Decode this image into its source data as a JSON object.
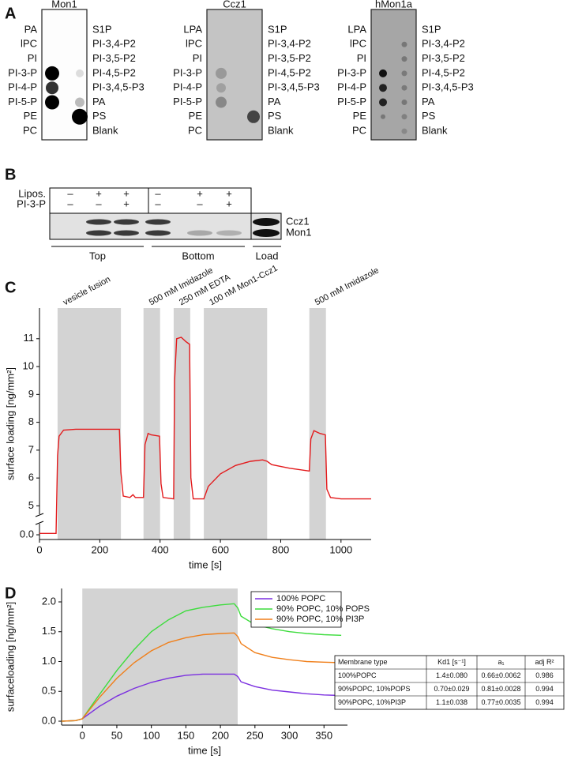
{
  "panel_a": {
    "label": "A",
    "blots": [
      {
        "title": "Mon1",
        "left": [
          "PA",
          "lPC",
          "PI",
          "PI-3-P",
          "PI-4-P",
          "PI-5-P",
          "PE",
          "PC"
        ],
        "right": [
          "S1P",
          "PI-3,4-P2",
          "PI-3,5-P2",
          "PI-4,5-P2",
          "PI-3,4,5-P3",
          "PA",
          "PS",
          "Blank"
        ]
      },
      {
        "title": "Ccz1",
        "left": [
          "LPA",
          "lPC",
          "PI",
          "PI-3-P",
          "PI-4-P",
          "PI-5-P",
          "PE",
          "PC"
        ],
        "right": [
          "S1P",
          "PI-3,4-P2",
          "PI-3,5-P2",
          "PI-4,5-P2",
          "PI-3,4,5-P3",
          "PA",
          "PS",
          "Blank"
        ]
      },
      {
        "title": "hMon1a",
        "left": [
          "LPA",
          "lPC",
          "PI",
          "PI-3-P",
          "PI-4-P",
          "PI-5-P",
          "PE",
          "PC"
        ],
        "right": [
          "S1P",
          "PI-3,4-P2",
          "PI-3,5-P2",
          "PI-4,5-P2",
          "PI-3,4,5-P3",
          "PA",
          "PS",
          "Blank"
        ]
      }
    ]
  },
  "panel_b": {
    "label": "B",
    "row_labels": [
      "Lipos.",
      "PI-3-P"
    ],
    "lanes": [
      [
        "–",
        "–"
      ],
      [
        "+",
        "–"
      ],
      [
        "+",
        "+"
      ],
      [
        "–",
        "–"
      ],
      [
        "+",
        "–"
      ],
      [
        "+",
        "+"
      ]
    ],
    "bands": [
      "Ccz1",
      "Mon1"
    ],
    "fractions": [
      "Top",
      "Bottom",
      "Load"
    ]
  },
  "panel_c": {
    "label": "C"
  },
  "panel_d": {
    "label": "D"
  },
  "chart_data": [
    {
      "type": "line",
      "x_label": "time [s]",
      "y_label": "surface loading [ng/mm²]",
      "xlim": [
        0,
        1100
      ],
      "xticks": [
        0,
        200,
        400,
        600,
        800,
        1000
      ],
      "ylim": [
        -0.17,
        12.1
      ],
      "ybreak": [
        0.4,
        4.7
      ],
      "yticks": [
        {
          "value": 0,
          "label": "0.0"
        },
        5,
        6,
        7,
        8,
        9,
        10,
        11
      ],
      "shaded": [
        {
          "x0": 60,
          "x1": 270,
          "label": "vesicle fusion"
        },
        {
          "x0": 345,
          "x1": 400,
          "label": "500 mM Imidazole"
        },
        {
          "x0": 445,
          "x1": 500,
          "label": "250 mM EDTA"
        },
        {
          "x0": 545,
          "x1": 755,
          "label": "100 nM Mon1-Ccz1"
        },
        {
          "x0": 895,
          "x1": 950,
          "label": "500 mM Imidazole"
        }
      ],
      "x": [
        0,
        55,
        60,
        65,
        80,
        120,
        265,
        270,
        278,
        300,
        310,
        318,
        345,
        350,
        360,
        370,
        398,
        403,
        410,
        445,
        448,
        455,
        470,
        485,
        498,
        502,
        510,
        545,
        560,
        600,
        650,
        700,
        740,
        755,
        770,
        830,
        895,
        900,
        910,
        930,
        948,
        953,
        965,
        1000,
        1100
      ],
      "series": [
        {
          "color": "#e31a1c",
          "values": [
            0.05,
            0.05,
            6.8,
            7.5,
            7.72,
            7.75,
            7.75,
            6.2,
            5.35,
            5.3,
            5.4,
            5.3,
            5.3,
            7.2,
            7.6,
            7.55,
            7.5,
            5.8,
            5.3,
            5.25,
            9.5,
            11.0,
            11.05,
            10.9,
            10.8,
            6.0,
            5.25,
            5.25,
            5.7,
            6.15,
            6.45,
            6.6,
            6.65,
            6.6,
            6.48,
            6.35,
            6.25,
            7.4,
            7.7,
            7.6,
            7.55,
            5.6,
            5.3,
            5.25,
            5.25
          ]
        }
      ]
    },
    {
      "type": "line",
      "x_label": "time [s]",
      "y_label": "surfaceloading  [ng/mm²]",
      "xlim": [
        -30,
        384
      ],
      "xticks": [
        0,
        50,
        100,
        150,
        200,
        250,
        300,
        350
      ],
      "ylim": [
        -0.066,
        2.225
      ],
      "yticks": [
        {
          "value": 0,
          "label": "0.0"
        },
        0.5,
        {
          "value": 1,
          "label": "1.0"
        },
        1.5,
        {
          "value": 2,
          "label": "2.0"
        }
      ],
      "shaded": [
        {
          "x0": 0,
          "x1": 225
        }
      ],
      "legend": "upper right",
      "x": [
        -30,
        -10,
        0,
        25,
        50,
        75,
        100,
        125,
        150,
        175,
        200,
        220,
        225,
        230,
        250,
        275,
        300,
        325,
        350,
        375
      ],
      "series": [
        {
          "name": "100% POPC",
          "color": "#7b2fe0",
          "values": [
            0.0,
            0.01,
            0.04,
            0.25,
            0.42,
            0.55,
            0.65,
            0.72,
            0.77,
            0.79,
            0.79,
            0.79,
            0.75,
            0.66,
            0.58,
            0.52,
            0.49,
            0.46,
            0.44,
            0.43
          ]
        },
        {
          "name": "90% POPC, 10% POPS",
          "color": "#3ddc3d",
          "values": [
            0.0,
            0.01,
            0.04,
            0.45,
            0.85,
            1.2,
            1.5,
            1.7,
            1.85,
            1.91,
            1.95,
            1.97,
            1.9,
            1.76,
            1.62,
            1.55,
            1.5,
            1.47,
            1.45,
            1.44
          ]
        },
        {
          "name": "90% POPC, 10% PI3P",
          "color": "#f07f1a",
          "values": [
            0.0,
            0.01,
            0.04,
            0.4,
            0.72,
            0.98,
            1.18,
            1.32,
            1.4,
            1.45,
            1.47,
            1.48,
            1.42,
            1.3,
            1.15,
            1.07,
            1.03,
            1.0,
            0.99,
            0.98
          ]
        }
      ]
    }
  ],
  "table": {
    "header": [
      "Membrane type",
      "Kd1 [s⁻¹]",
      "a₁",
      "adj R²"
    ],
    "rows": [
      [
        "100%POPC",
        "1.4±0.080",
        "0.66±0.0062",
        "0.986"
      ],
      [
        "90%POPC, 10%POPS",
        "0.70±0.029",
        "0.81±0.0028",
        "0.994"
      ],
      [
        "90%POPC, 10%PI3P",
        "1.1±0.038",
        "0.77±0.0035",
        "0.994"
      ]
    ]
  }
}
